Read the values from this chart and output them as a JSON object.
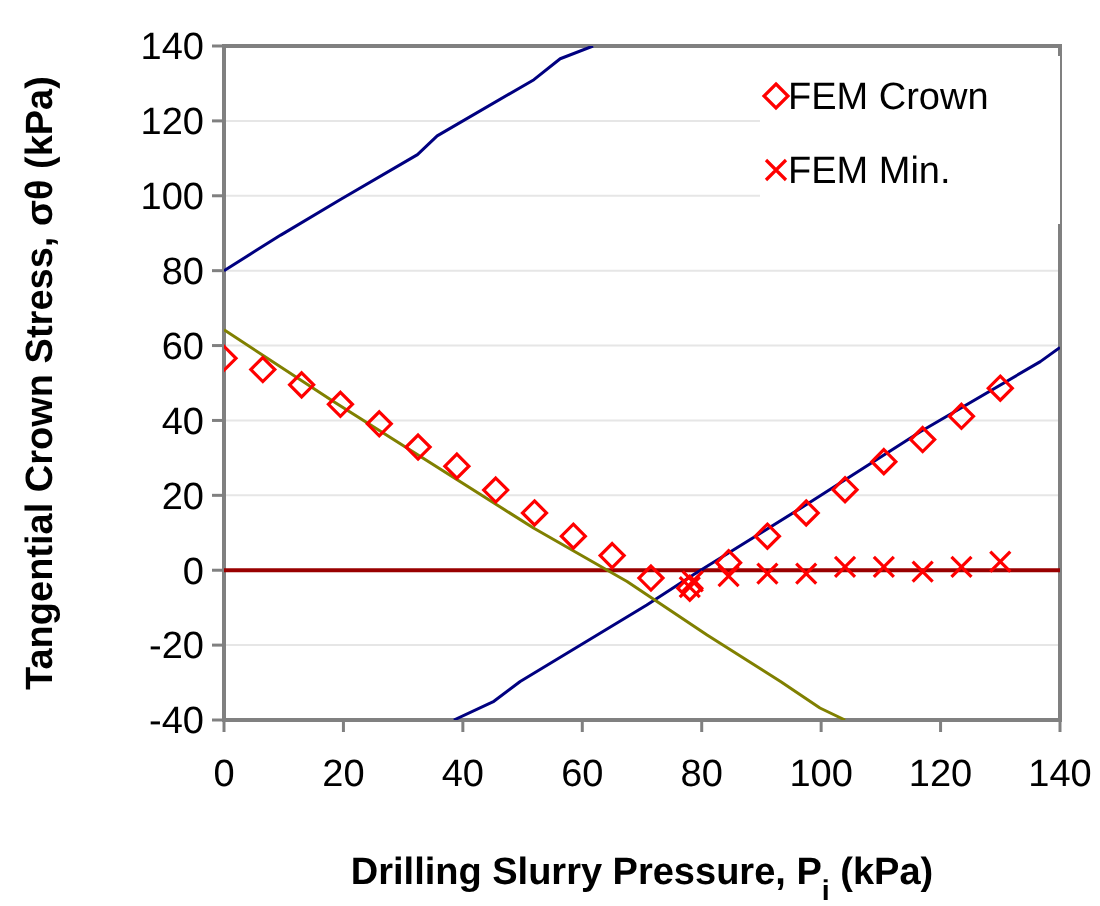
{
  "chart_data": {
    "type": "scatter",
    "xlabel": "Drilling Slurry Pressure, P$_{i}$ (kPa)",
    "ylabel": "Tangential Crown Stress, σθ (kPa)",
    "xlim": [
      0,
      140
    ],
    "ylim": [
      -40,
      140
    ],
    "xticks": [
      0,
      20,
      40,
      60,
      80,
      100,
      120,
      140
    ],
    "yticks": [
      -40,
      -20,
      0,
      20,
      40,
      60,
      80,
      100,
      120,
      140
    ],
    "grid": "y",
    "legend": "top right",
    "ref_lines": [
      {
        "axis": "y",
        "value": 0,
        "color": "#990000"
      }
    ],
    "series": [
      {
        "name": "FEM Crown",
        "marker": "diamond",
        "color": "#ff0000",
        "x": [
          0,
          6.5,
          13,
          19.5,
          26,
          32.5,
          39,
          45.5,
          52,
          58.5,
          65,
          71.5,
          78,
          84.5,
          91,
          97.5,
          104,
          110.5,
          117,
          123.5,
          130
        ],
        "values": [
          56.6,
          53.6,
          49.5,
          44.3,
          39.1,
          32.9,
          27.8,
          21.4,
          15.3,
          9.1,
          3.9,
          -2.1,
          -4.8,
          2,
          9.1,
          15.3,
          21.5,
          29,
          34.9,
          41.1,
          48.6
        ]
      },
      {
        "name": "FEM Min.",
        "marker": "cross",
        "color": "#ff0000",
        "x": [
          78,
          78.5,
          84.5,
          91,
          97.5,
          104,
          110.5,
          117,
          123.5,
          130
        ],
        "values": [
          -4.5,
          -3,
          -1.6,
          -0.9,
          -0.9,
          0.9,
          0.9,
          -0.4,
          0.9,
          2.3
        ]
      },
      {
        "type": "line",
        "marker": "none",
        "color": "#000080",
        "x": [
          0,
          9.5,
          19.5,
          32.4,
          35.7,
          51.9,
          56.3,
          61.8
        ],
        "values": [
          80,
          89.5,
          99,
          111,
          116,
          131,
          136.6,
          140
        ]
      },
      {
        "type": "line",
        "marker": "none",
        "color": "#000080",
        "x": [
          38.5,
          45.2,
          49.6,
          70.8,
          78.6,
          96.5,
          116.6,
          136.7,
          140
        ],
        "values": [
          -40,
          -35,
          -29.7,
          -9.3,
          -1.2,
          16.5,
          37,
          55.7,
          59.5
        ]
      },
      {
        "type": "line",
        "marker": "none",
        "color": "#808000",
        "x": [
          0,
          18.4,
          51.9,
          67.5,
          80.9,
          93.2,
          99.8,
          104
        ],
        "values": [
          64.2,
          45,
          11.2,
          -3,
          -17.3,
          -29.7,
          -36.8,
          -40
        ]
      }
    ]
  }
}
